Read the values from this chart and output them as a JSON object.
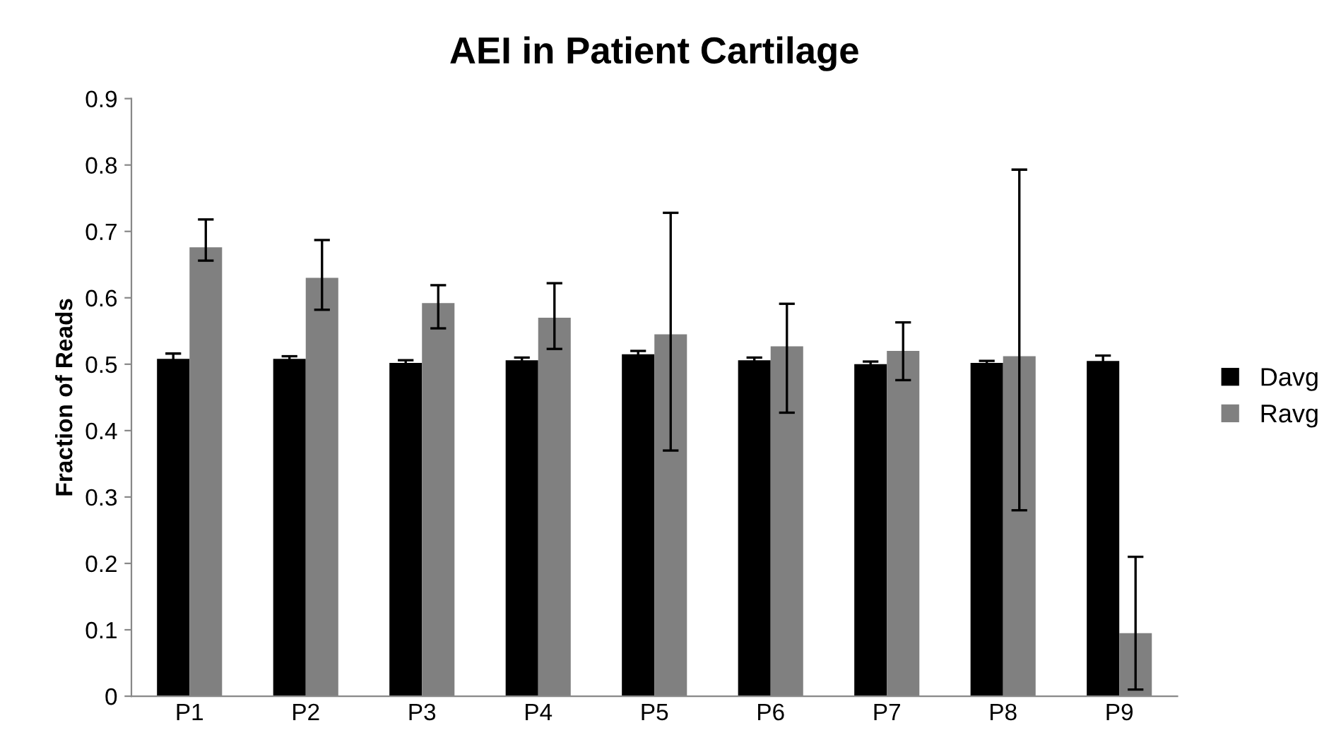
{
  "chart_data": {
    "type": "bar",
    "title": "AEI in Patient Cartilage",
    "ylabel": "Fraction of Reads",
    "categories": [
      "P1",
      "P2",
      "P3",
      "P4",
      "P5",
      "P6",
      "P7",
      "P8",
      "P9"
    ],
    "series": [
      {
        "name": "Davg",
        "color": "#000000",
        "values": [
          0.508,
          0.508,
          0.502,
          0.506,
          0.515,
          0.506,
          0.5,
          0.502,
          0.505
        ],
        "errors": [
          0.008,
          0.004,
          0.004,
          0.004,
          0.005,
          0.004,
          0.004,
          0.003,
          0.008
        ]
      },
      {
        "name": "Ravg",
        "color": "#808080",
        "values": [
          0.676,
          0.63,
          0.592,
          0.57,
          0.545,
          0.527,
          0.52,
          0.512,
          0.095
        ],
        "errors": [
          [
            0.656,
            0.718
          ],
          [
            0.582,
            0.687
          ],
          [
            0.554,
            0.619
          ],
          [
            0.523,
            0.622
          ],
          [
            0.37,
            0.728
          ],
          [
            0.427,
            0.591
          ],
          [
            0.476,
            0.563
          ],
          [
            0.28,
            0.793
          ],
          [
            0.01,
            0.21
          ]
        ]
      }
    ],
    "ylim": [
      0,
      0.9
    ],
    "yticks": [
      0,
      0.1,
      0.2,
      0.3,
      0.4,
      0.5,
      0.6,
      0.7,
      0.8,
      0.9
    ],
    "grid": false,
    "legend": "right"
  }
}
